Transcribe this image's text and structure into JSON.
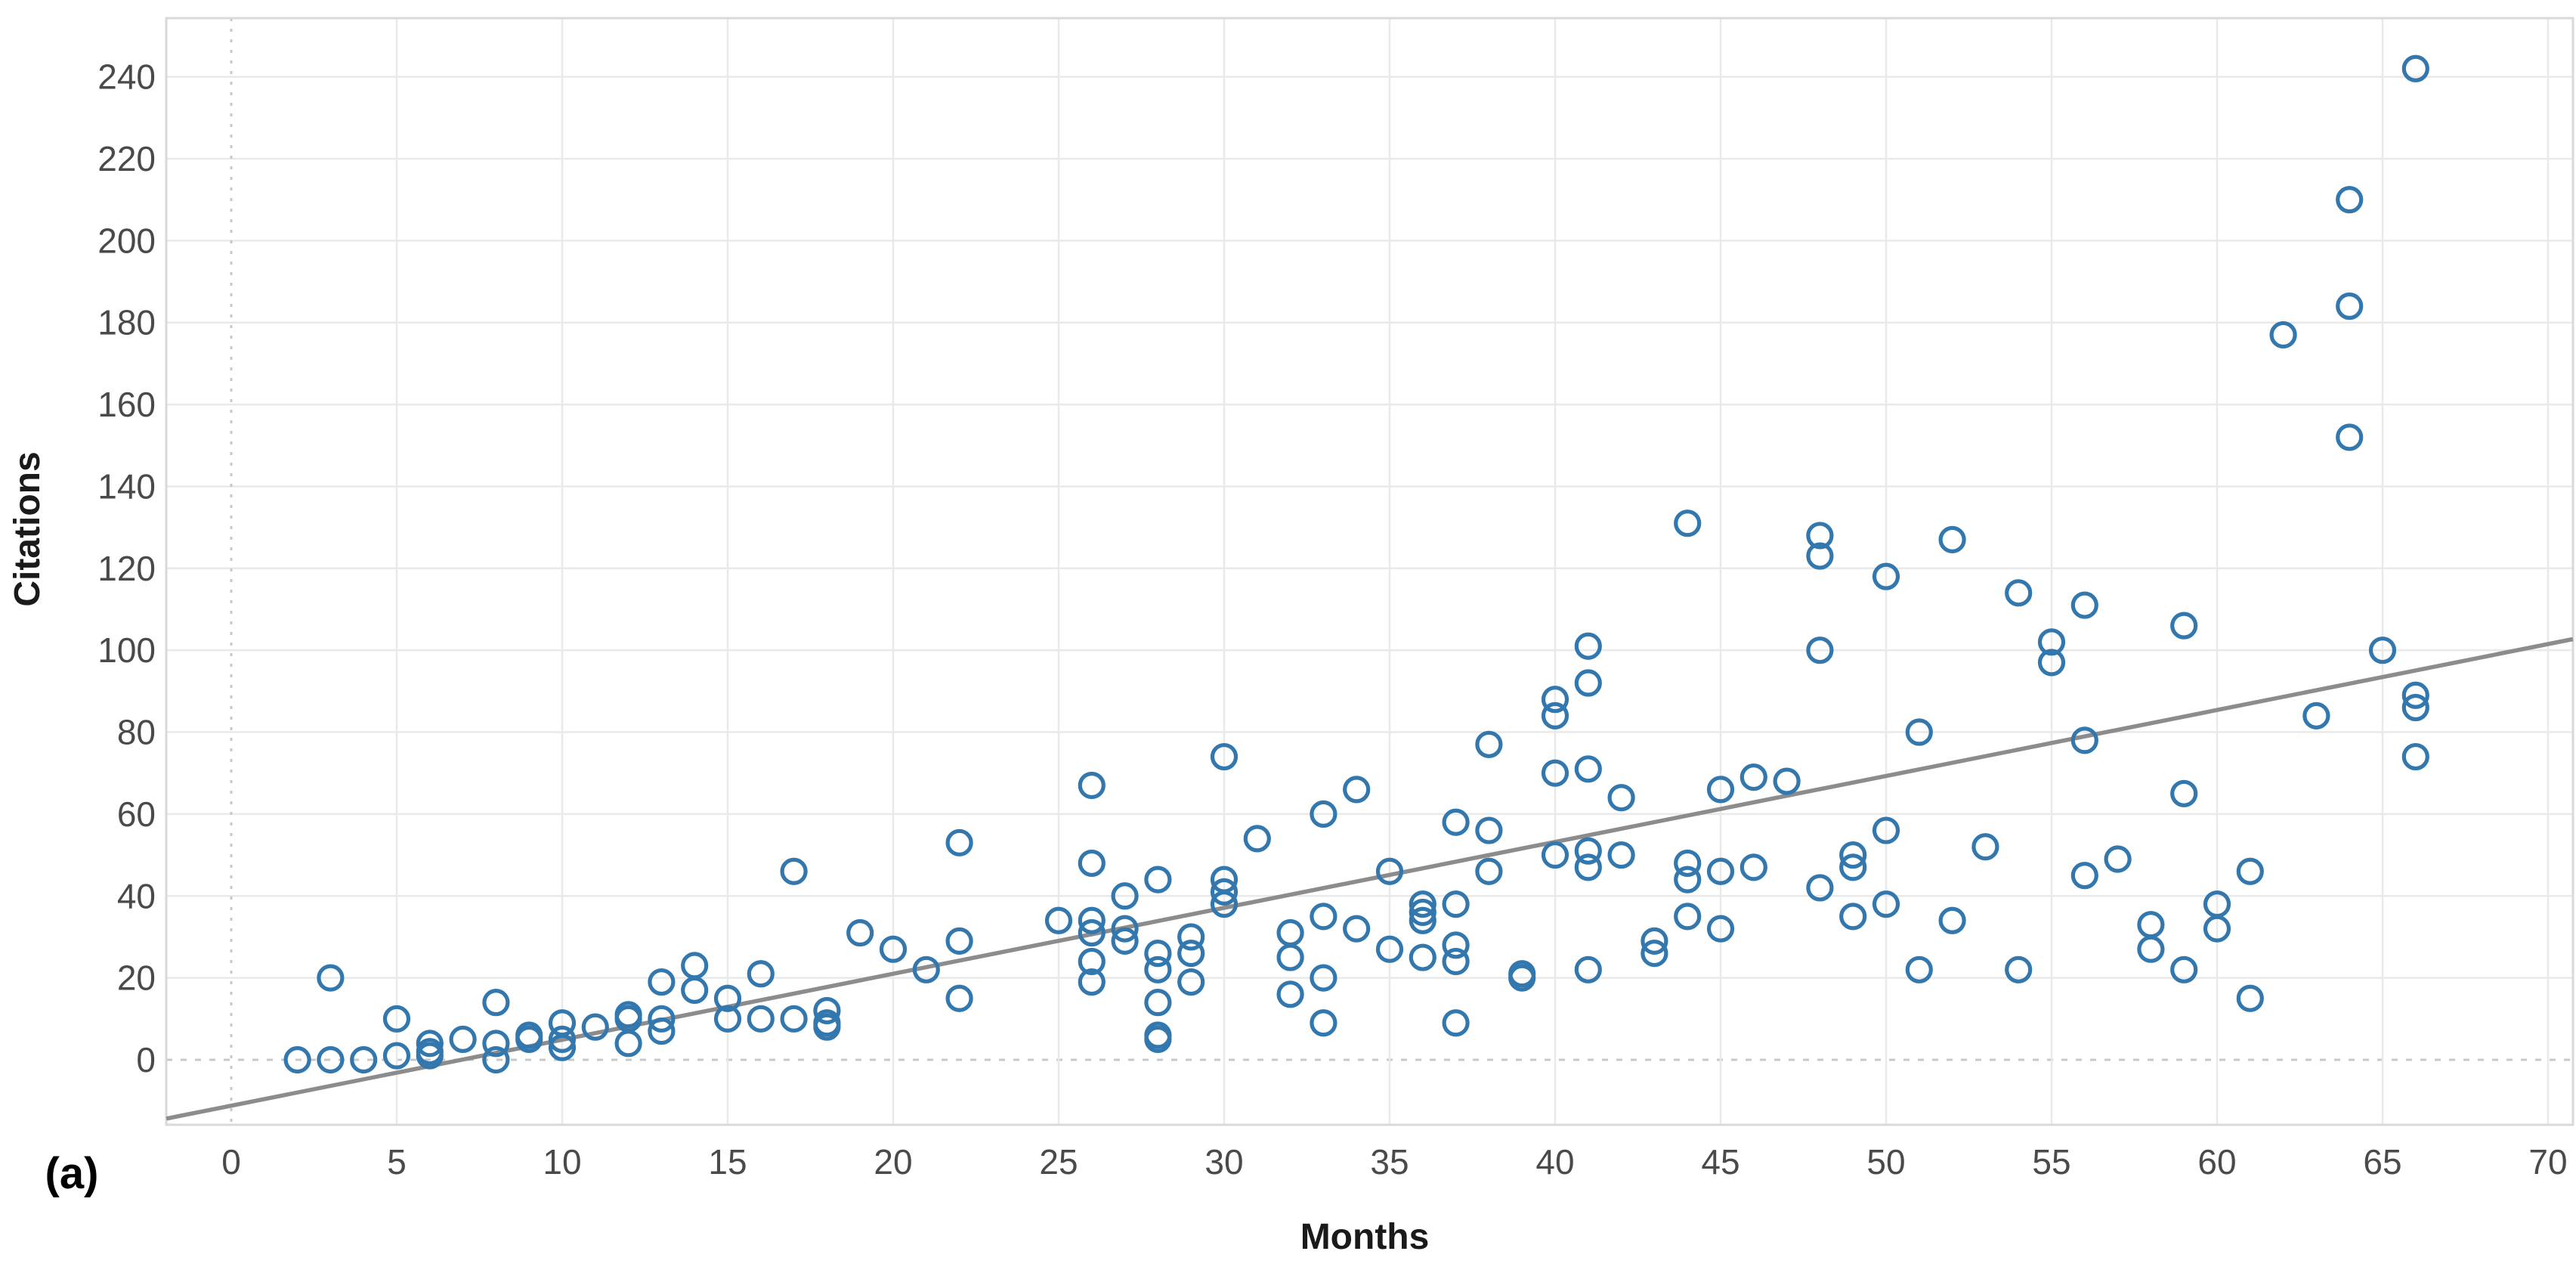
{
  "chart_data": {
    "type": "scatter",
    "title": "",
    "xlabel": "Months",
    "ylabel": "Citations",
    "panel_label": "(a)",
    "x_ticks": [
      0,
      5,
      10,
      15,
      20,
      25,
      30,
      35,
      40,
      45,
      50,
      55,
      60,
      65,
      70
    ],
    "y_ticks": [
      0,
      20,
      40,
      60,
      80,
      100,
      120,
      140,
      160,
      180,
      200,
      220,
      240
    ],
    "xlim": [
      -2,
      70.8
    ],
    "ylim": [
      -16,
      254
    ],
    "grid": "on",
    "legend": "none",
    "marker_style": "open-circle",
    "marker_color": "#3277ad",
    "trend_color": "#8c8c8c",
    "grid_color": "#e9e9e9",
    "zero_line_color": "#c8c8c8",
    "frame_color": "#d9d9d9",
    "trendline": {
      "slope": 1.61,
      "intercept": -11.2,
      "x_start": -1.96,
      "x_end": 70.75
    },
    "points": [
      [
        2,
        0
      ],
      [
        3,
        0
      ],
      [
        3,
        20
      ],
      [
        4,
        0
      ],
      [
        5,
        1
      ],
      [
        5,
        10
      ],
      [
        6,
        1
      ],
      [
        6,
        2
      ],
      [
        6,
        4
      ],
      [
        7,
        5
      ],
      [
        8,
        0
      ],
      [
        8,
        4
      ],
      [
        8,
        14
      ],
      [
        9,
        5
      ],
      [
        9,
        6
      ],
      [
        10,
        3
      ],
      [
        10,
        5
      ],
      [
        10,
        9
      ],
      [
        11,
        8
      ],
      [
        12,
        4
      ],
      [
        12,
        10
      ],
      [
        12,
        11
      ],
      [
        13,
        7
      ],
      [
        13,
        10
      ],
      [
        13,
        19
      ],
      [
        14,
        17
      ],
      [
        14,
        23
      ],
      [
        15,
        10
      ],
      [
        15,
        15
      ],
      [
        16,
        10
      ],
      [
        16,
        21
      ],
      [
        17,
        10
      ],
      [
        17,
        46
      ],
      [
        18,
        8
      ],
      [
        18,
        9
      ],
      [
        18,
        12
      ],
      [
        19,
        31
      ],
      [
        20,
        27
      ],
      [
        21,
        22
      ],
      [
        22,
        15
      ],
      [
        22,
        29
      ],
      [
        22,
        53
      ],
      [
        25,
        34
      ],
      [
        26,
        19
      ],
      [
        26,
        24
      ],
      [
        26,
        31
      ],
      [
        26,
        34
      ],
      [
        26,
        48
      ],
      [
        26,
        67
      ],
      [
        27,
        29
      ],
      [
        27,
        32
      ],
      [
        27,
        40
      ],
      [
        28,
        5
      ],
      [
        28,
        6
      ],
      [
        28,
        14
      ],
      [
        28,
        22
      ],
      [
        28,
        26
      ],
      [
        28,
        44
      ],
      [
        29,
        19
      ],
      [
        29,
        26
      ],
      [
        29,
        30
      ],
      [
        30,
        38
      ],
      [
        30,
        41
      ],
      [
        30,
        44
      ],
      [
        30,
        74
      ],
      [
        31,
        54
      ],
      [
        32,
        16
      ],
      [
        32,
        25
      ],
      [
        32,
        31
      ],
      [
        33,
        9
      ],
      [
        33,
        20
      ],
      [
        33,
        35
      ],
      [
        33,
        60
      ],
      [
        34,
        32
      ],
      [
        34,
        66
      ],
      [
        35,
        27
      ],
      [
        35,
        46
      ],
      [
        36,
        25
      ],
      [
        36,
        34
      ],
      [
        36,
        36
      ],
      [
        36,
        38
      ],
      [
        37,
        9
      ],
      [
        37,
        24
      ],
      [
        37,
        28
      ],
      [
        37,
        38
      ],
      [
        37,
        58
      ],
      [
        38,
        46
      ],
      [
        38,
        56
      ],
      [
        38,
        77
      ],
      [
        39,
        20
      ],
      [
        39,
        21
      ],
      [
        40,
        50
      ],
      [
        40,
        70
      ],
      [
        40,
        84
      ],
      [
        40,
        88
      ],
      [
        41,
        22
      ],
      [
        41,
        47
      ],
      [
        41,
        51
      ],
      [
        41,
        71
      ],
      [
        41,
        92
      ],
      [
        41,
        101
      ],
      [
        42,
        50
      ],
      [
        42,
        64
      ],
      [
        43,
        26
      ],
      [
        43,
        29
      ],
      [
        44,
        35
      ],
      [
        44,
        44
      ],
      [
        44,
        48
      ],
      [
        44,
        131
      ],
      [
        45,
        32
      ],
      [
        45,
        46
      ],
      [
        45,
        66
      ],
      [
        46,
        47
      ],
      [
        46,
        69
      ],
      [
        47,
        68
      ],
      [
        48,
        42
      ],
      [
        48,
        100
      ],
      [
        48,
        123
      ],
      [
        48,
        128
      ],
      [
        49,
        35
      ],
      [
        49,
        47
      ],
      [
        49,
        50
      ],
      [
        50,
        38
      ],
      [
        50,
        56
      ],
      [
        50,
        118
      ],
      [
        51,
        22
      ],
      [
        51,
        80
      ],
      [
        52,
        34
      ],
      [
        52,
        127
      ],
      [
        53,
        52
      ],
      [
        54,
        22
      ],
      [
        54,
        114
      ],
      [
        55,
        97
      ],
      [
        55,
        102
      ],
      [
        56,
        45
      ],
      [
        56,
        78
      ],
      [
        56,
        111
      ],
      [
        57,
        49
      ],
      [
        58,
        27
      ],
      [
        58,
        33
      ],
      [
        59,
        22
      ],
      [
        59,
        65
      ],
      [
        59,
        106
      ],
      [
        60,
        32
      ],
      [
        60,
        38
      ],
      [
        61,
        15
      ],
      [
        61,
        46
      ],
      [
        62,
        177
      ],
      [
        63,
        84
      ],
      [
        64,
        152
      ],
      [
        64,
        184
      ],
      [
        64,
        210
      ],
      [
        65,
        100
      ],
      [
        66,
        74
      ],
      [
        66,
        86
      ],
      [
        66,
        89
      ],
      [
        66,
        242
      ]
    ]
  }
}
